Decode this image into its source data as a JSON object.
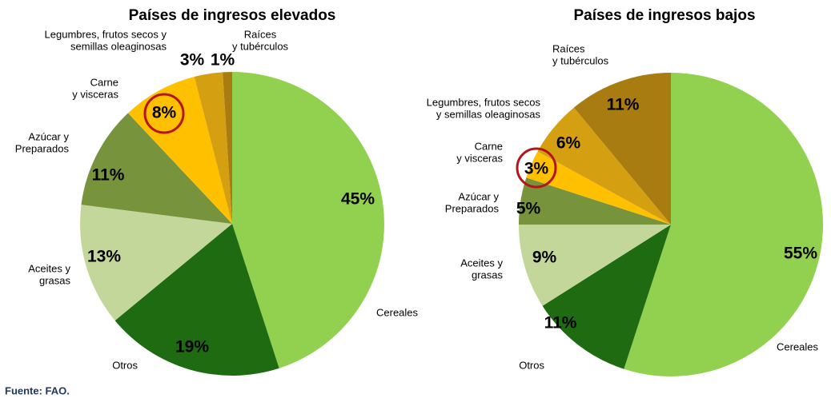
{
  "chart_data": [
    {
      "type": "pie",
      "title": "Países de ingresos elevados",
      "categories": [
        "Cereales",
        "Otros",
        "Aceites y\ngrasas",
        "Azúcar y\nPreparados",
        "Carne\ny visceras",
        "Legumbres, frutos secos y\nsemillas oleaginosas",
        "Raíces\ny tubérculos"
      ],
      "values": [
        45,
        19,
        13,
        11,
        8,
        3,
        1
      ],
      "value_labels": [
        "45%",
        "19%",
        "13%",
        "11%",
        "8%",
        "3%",
        "1%"
      ],
      "colors": [
        "#92d050",
        "#1e6b12",
        "#c4d79b",
        "#77933c",
        "#ffc000",
        "#d4a012",
        "#a87c10"
      ]
    },
    {
      "type": "pie",
      "title": "Países de ingresos bajos",
      "categories": [
        "Cereales",
        "Otros",
        "Aceites y\ngrasas",
        "Azúcar y\nPreparados",
        "Carne\ny visceras",
        "Legumbres, frutos secos\ny semillas oleaginosas",
        "Raíces\ny tubérculos"
      ],
      "values": [
        55,
        11,
        9,
        5,
        3,
        6,
        11
      ],
      "value_labels": [
        "55%",
        "11%",
        "9%",
        "5%",
        "3%",
        "6%",
        "11%"
      ],
      "colors": [
        "#92d050",
        "#1e6b12",
        "#c4d79b",
        "#77933c",
        "#ffc000",
        "#d4a012",
        "#a87c10"
      ]
    }
  ],
  "source": "Fuente: FAO."
}
